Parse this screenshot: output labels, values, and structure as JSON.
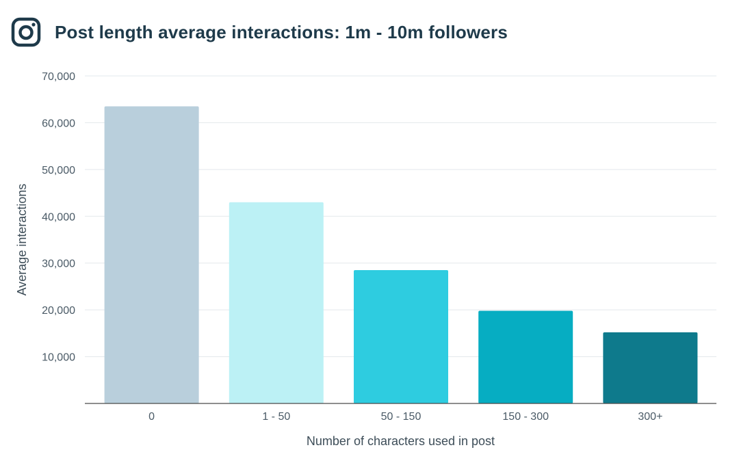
{
  "header": {
    "title": "Post length average interactions: 1m - 10m followers",
    "logo_icon": "instagram-icon",
    "logo_color": "#1e3a4a"
  },
  "chart_data": {
    "type": "bar",
    "categories": [
      "0",
      "1 - 50",
      "50 - 150",
      "150 - 300",
      "300+"
    ],
    "values": [
      63500,
      43000,
      28500,
      19800,
      15200
    ],
    "bar_colors": [
      "#b9cfdc",
      "#bcf1f5",
      "#2ecce0",
      "#06adc2",
      "#0e7a8c"
    ],
    "xlabel": "Number of characters used in post",
    "ylabel": "Average interactions",
    "ylim": [
      0,
      70000
    ],
    "yticks": [
      10000,
      20000,
      30000,
      40000,
      50000,
      60000,
      70000
    ],
    "ytick_labels": [
      "10,000",
      "20,000",
      "30,000",
      "40,000",
      "50,000",
      "60,000",
      "70,000"
    ],
    "grid": true,
    "legend": "none"
  }
}
